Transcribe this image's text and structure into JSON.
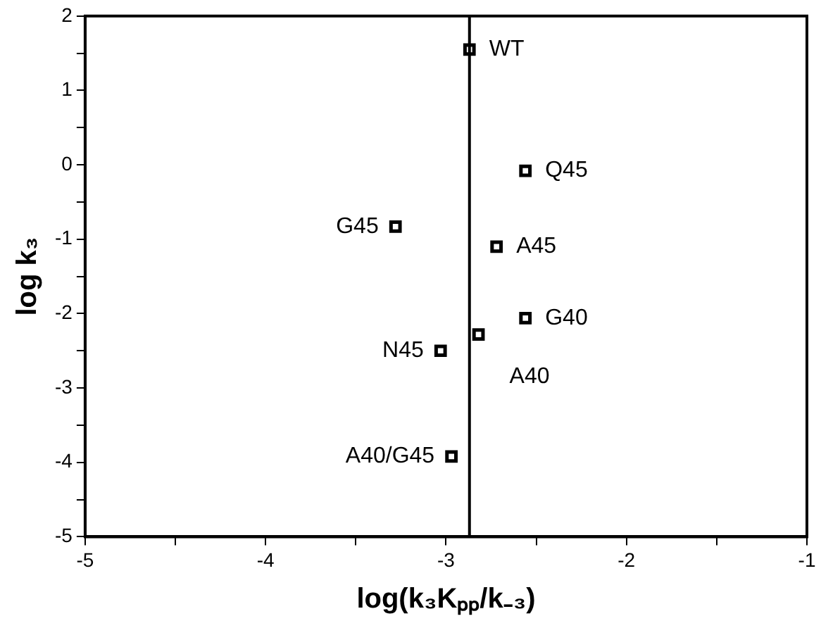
{
  "chart_data": {
    "type": "scatter",
    "xlabel": "log(k₃Kₚₚ/k₋₃)",
    "ylabel": "log k₃",
    "x": [
      -2.87,
      -2.56,
      -3.28,
      -2.72,
      -2.56,
      -2.82,
      -3.03,
      -2.97
    ],
    "values": [
      1.55,
      -0.08,
      -0.83,
      -1.1,
      -2.06,
      -2.28,
      -2.5,
      -3.92
    ],
    "color": "#000000",
    "marker": "square",
    "grid": false,
    "legend": false,
    "xlim": [
      -5,
      -1
    ],
    "xticks": [
      -5,
      {
        "value": -4.5,
        "label": null
      },
      -4,
      {
        "value": -3.5,
        "label": null
      },
      -3,
      {
        "value": -2.5,
        "label": null
      },
      -2,
      {
        "value": -1.5,
        "label": null
      },
      -1
    ],
    "ylim": [
      -5,
      2
    ],
    "yticks": [
      -5,
      {
        "value": -4.5,
        "label": null
      },
      -4,
      {
        "value": -3.5,
        "label": null
      },
      -3,
      {
        "value": -2.5,
        "label": null
      },
      -2,
      {
        "value": -1.5,
        "label": null
      },
      -1,
      {
        "value": -0.5,
        "label": null
      },
      0,
      {
        "value": 0.5,
        "label": null
      },
      1,
      {
        "value": 1.5,
        "label": null
      },
      2
    ],
    "ref_lines": [
      {
        "axis": "x",
        "value": -2.87,
        "color": "#000000"
      }
    ],
    "annotations": [
      {
        "text": "WT",
        "x": -2.87,
        "y": 1.55
      },
      {
        "text": "Q45",
        "x": -2.56,
        "y": -0.08
      },
      {
        "text": "G45",
        "x": -3.28,
        "y": -0.83
      },
      {
        "text": "A45",
        "x": -2.72,
        "y": -1.1
      },
      {
        "text": "G40",
        "x": -2.56,
        "y": -2.06
      },
      {
        "text": "A40",
        "x": -2.82,
        "y": -2.28
      },
      {
        "text": "N45",
        "x": -3.03,
        "y": -2.5
      },
      {
        "text": "A40/G45",
        "x": -2.97,
        "y": -3.92
      }
    ]
  }
}
